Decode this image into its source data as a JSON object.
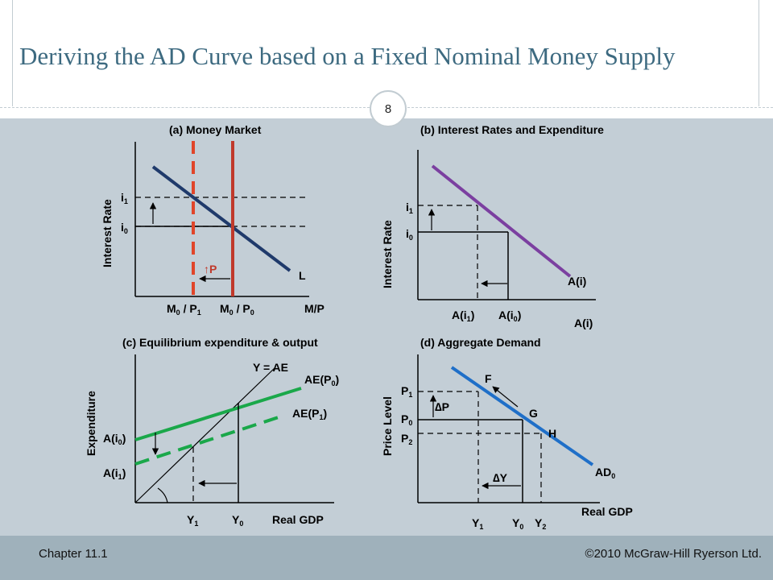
{
  "title": "Deriving the AD Curve based on a Fixed Nominal Money Supply",
  "page_number": "8",
  "footer": {
    "left": "Chapter 11.1",
    "right": "©2010 McGraw-Hill Ryerson Ltd."
  },
  "colors": {
    "title": "#3d6a80",
    "panel": "#c3ced6",
    "footer": "#9fb1bb",
    "demand": "#1f3a6b",
    "supply": "#c0392b",
    "expenditure": "#7b3fa0",
    "ae": "#1aa84a",
    "ad": "#1f6fc8"
  },
  "panels": {
    "a": {
      "heading": "(a) Money Market",
      "ylabel": "Interest Rate",
      "xlabel": "M/P",
      "curve": "L",
      "i1": "i",
      "i1_sub": "1",
      "i0": "i",
      "i0_sub": "0",
      "shift_label": "P",
      "shift_arrow": "↑",
      "m1": "M",
      "m1_sub0": "0",
      "m1_mid": " / P",
      "m1_sub1": "1",
      "m0": "M",
      "m0_sub0": "0",
      "m0_mid": " / P",
      "m0_sub1": "0"
    },
    "b": {
      "heading_paren": "(",
      "heading": "b) Interest Rates and Expenditure",
      "ylabel": "Interest Rate",
      "xlabel": "A(i)",
      "curve": "A(i)",
      "i1": "i",
      "i1_sub": "1",
      "i0": "i",
      "i0_sub": "0",
      "a1": "A(i",
      "a1_sub": "1",
      "a1_close": ")",
      "a0": "A(i",
      "a0_sub": "0",
      "a0_close": ")"
    },
    "c": {
      "heading": "(c) Equilibrium expenditure & output",
      "ylabel": "Expenditure",
      "xlabel": "Real GDP",
      "line45": "Y = AE",
      "ae0": "AE(P",
      "ae0_sub": "0",
      "ae0_close": ")",
      "ae1": "AE(P",
      "ae1_sub": "1",
      "ae1_close": ")",
      "a0": "A(i",
      "a0_sub": "0",
      "a0_close": ")",
      "a1": "A(i",
      "a1_sub": "1",
      "a1_close": ")",
      "y1": "Y",
      "y1_sub": "1",
      "y0": "Y",
      "y0_sub": "0"
    },
    "d": {
      "heading": "(d) Aggregate Demand",
      "ylabel": "Price Level",
      "xlabel": "Real GDP",
      "curve": "AD",
      "curve_sub": "0",
      "p1": "P",
      "p1_sub": "1",
      "p0": "P",
      "p0_sub": "0",
      "p2": "P",
      "p2_sub": "2",
      "dp": "∆P",
      "dy": "∆Y",
      "f": "F",
      "g": "G",
      "h": "H",
      "y1": "Y",
      "y1_sub": "1",
      "y0": "Y",
      "y0_sub": "0",
      "y2": "Y",
      "y2_sub": "2"
    }
  }
}
